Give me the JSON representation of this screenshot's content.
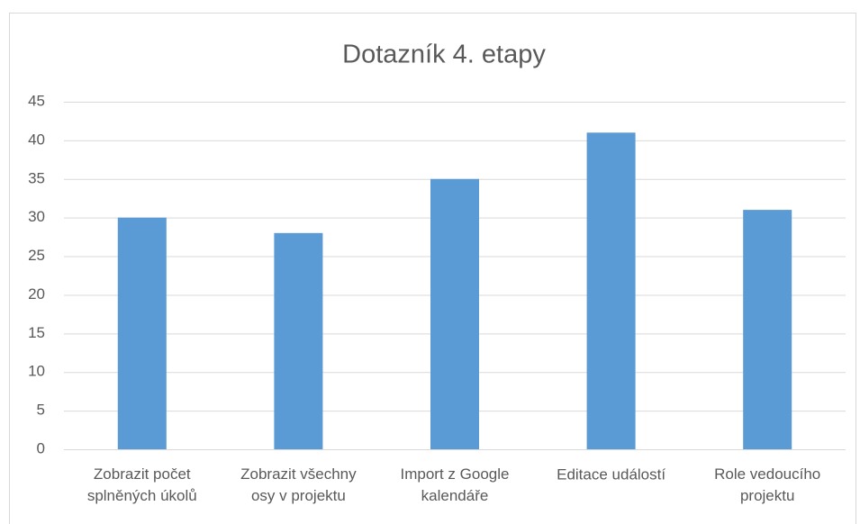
{
  "chart_data": {
    "type": "bar",
    "title": "Dotazník 4. etapy",
    "categories": [
      "Zobrazit počet\nsplněných úkolů",
      "Zobrazit všechny\nosy v projektu",
      "Import z Google\nkalendáře",
      "Editace událostí",
      "Role vedoucího\nprojektu"
    ],
    "values": [
      30,
      28,
      35,
      41,
      31
    ],
    "color": "#5b9bd5",
    "ylim": [
      0,
      45
    ],
    "yticks": [
      0,
      5,
      10,
      15,
      20,
      25,
      30,
      35,
      40,
      45
    ],
    "grid": true
  }
}
